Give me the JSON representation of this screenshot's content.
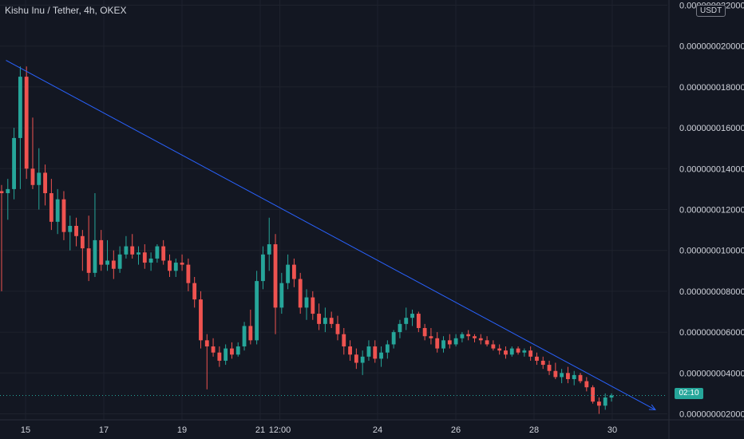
{
  "header": {
    "symbol_title": "Kishu Inu / Tether, 4h, OKEX",
    "currency_unit": "USDT",
    "countdown": "02:10"
  },
  "colors": {
    "background": "#131722",
    "grid": "#1e222d",
    "text": "#d1d4dc",
    "up": "#26a69a",
    "down": "#ef5350",
    "trendline": "#2962ff",
    "axis_border": "#2a2e39"
  },
  "chart_data": {
    "type": "candlestick",
    "title": "Kishu Inu / Tether, 4h, OKEX",
    "xlabel": "",
    "ylabel": "",
    "ylim": [
      1e-09,
      2.21e-08
    ],
    "y_ticks": [
      "0.000000002000",
      "0.000000004000",
      "0.000000006000",
      "0.000000008000",
      "0.000000010000",
      "0.000000012000",
      "0.000000014000",
      "0.000000016000",
      "0.000000018000",
      "0.000000020000",
      "0.000000022000"
    ],
    "x_ticks": [
      {
        "label": "15",
        "day": 15
      },
      {
        "label": "17",
        "day": 17
      },
      {
        "label": "19",
        "day": 19
      },
      {
        "label": "21",
        "day": 21
      },
      {
        "label": "12:00",
        "day": 21.5
      },
      {
        "label": "24",
        "day": 24
      },
      {
        "label": "26",
        "day": 26
      },
      {
        "label": "28",
        "day": 28
      },
      {
        "label": "30",
        "day": 30
      }
    ],
    "grid": true,
    "candles": [
      [
        12.9,
        13.2,
        8.0,
        12.8
      ],
      [
        12.8,
        13.5,
        11.5,
        13.0
      ],
      [
        13.0,
        16.0,
        12.5,
        15.5
      ],
      [
        15.5,
        19.0,
        13.0,
        18.5
      ],
      [
        18.5,
        19.0,
        13.5,
        14.0
      ],
      [
        14.0,
        16.5,
        13.0,
        13.2
      ],
      [
        13.2,
        15.0,
        12.0,
        13.8
      ],
      [
        13.8,
        14.2,
        12.2,
        12.8
      ],
      [
        12.8,
        13.5,
        11.0,
        11.4
      ],
      [
        11.4,
        13.0,
        10.8,
        12.5
      ],
      [
        12.5,
        12.9,
        10.5,
        10.9
      ],
      [
        10.9,
        11.7,
        10.0,
        11.2
      ],
      [
        11.2,
        11.6,
        10.2,
        10.7
      ],
      [
        10.7,
        11.0,
        9.0,
        10.1
      ],
      [
        10.1,
        11.7,
        8.5,
        8.9
      ],
      [
        8.9,
        12.8,
        8.7,
        10.5
      ],
      [
        10.5,
        11.0,
        9.0,
        9.3
      ],
      [
        9.3,
        10.5,
        9.0,
        9.5
      ],
      [
        9.5,
        10.0,
        8.6,
        9.1
      ],
      [
        9.1,
        10.2,
        8.9,
        9.8
      ],
      [
        9.8,
        10.7,
        9.6,
        10.2
      ],
      [
        10.2,
        10.8,
        9.6,
        9.8
      ],
      [
        9.8,
        10.2,
        9.3,
        9.9
      ],
      [
        9.9,
        10.3,
        9.1,
        9.4
      ],
      [
        9.4,
        9.9,
        9.0,
        9.6
      ],
      [
        9.6,
        10.3,
        9.4,
        10.2
      ],
      [
        10.2,
        10.5,
        9.3,
        9.5
      ],
      [
        9.5,
        9.8,
        8.7,
        9.0
      ],
      [
        9.0,
        9.6,
        8.7,
        9.4
      ],
      [
        9.4,
        9.8,
        9.0,
        9.3
      ],
      [
        9.3,
        9.6,
        8.0,
        8.4
      ],
      [
        8.4,
        8.7,
        7.2,
        7.6
      ],
      [
        7.6,
        8.0,
        5.2,
        5.6
      ],
      [
        5.6,
        5.9,
        3.2,
        5.3
      ],
      [
        5.3,
        5.7,
        4.8,
        5.0
      ],
      [
        5.0,
        5.3,
        4.3,
        4.6
      ],
      [
        4.6,
        5.4,
        4.4,
        5.2
      ],
      [
        5.2,
        5.5,
        4.7,
        4.9
      ],
      [
        4.9,
        5.5,
        4.8,
        5.3
      ],
      [
        5.3,
        6.5,
        5.1,
        6.3
      ],
      [
        6.3,
        7.1,
        5.4,
        5.6
      ],
      [
        5.6,
        9.0,
        5.4,
        8.5
      ],
      [
        8.5,
        10.2,
        8.1,
        9.8
      ],
      [
        9.8,
        11.6,
        9.0,
        10.3
      ],
      [
        10.3,
        10.8,
        5.9,
        7.2
      ],
      [
        7.2,
        8.9,
        6.9,
        8.4
      ],
      [
        8.4,
        9.8,
        8.1,
        9.3
      ],
      [
        9.3,
        9.6,
        8.2,
        8.6
      ],
      [
        8.6,
        8.9,
        6.9,
        7.2
      ],
      [
        7.2,
        8.1,
        6.6,
        7.7
      ],
      [
        7.7,
        8.0,
        6.6,
        6.9
      ],
      [
        6.9,
        7.4,
        6.1,
        6.4
      ],
      [
        6.4,
        7.2,
        6.0,
        6.7
      ],
      [
        6.7,
        7.0,
        6.2,
        6.4
      ],
      [
        6.4,
        6.8,
        5.6,
        5.9
      ],
      [
        5.9,
        6.2,
        4.9,
        5.3
      ],
      [
        5.3,
        5.6,
        4.6,
        4.9
      ],
      [
        4.9,
        5.2,
        4.2,
        4.5
      ],
      [
        4.5,
        5.1,
        3.9,
        4.8
      ],
      [
        4.8,
        5.6,
        4.6,
        5.3
      ],
      [
        5.3,
        5.6,
        4.5,
        4.7
      ],
      [
        4.7,
        5.3,
        4.3,
        5.0
      ],
      [
        5.0,
        5.6,
        4.7,
        5.4
      ],
      [
        5.4,
        6.1,
        5.2,
        6.0
      ],
      [
        6.0,
        6.6,
        5.7,
        6.4
      ],
      [
        6.4,
        7.2,
        6.1,
        6.7
      ],
      [
        6.7,
        7.1,
        6.3,
        6.9
      ],
      [
        6.9,
        7.0,
        6.0,
        6.2
      ],
      [
        6.2,
        6.4,
        5.6,
        5.8
      ],
      [
        5.8,
        6.2,
        5.4,
        5.7
      ],
      [
        5.7,
        6.0,
        5.0,
        5.2
      ],
      [
        5.2,
        5.8,
        5.0,
        5.6
      ],
      [
        5.6,
        5.9,
        5.2,
        5.4
      ],
      [
        5.4,
        5.9,
        5.3,
        5.7
      ],
      [
        5.7,
        6.0,
        5.5,
        5.9
      ],
      [
        5.9,
        6.1,
        5.6,
        5.8
      ],
      [
        5.8,
        5.9,
        5.5,
        5.7
      ],
      [
        5.7,
        5.9,
        5.4,
        5.6
      ],
      [
        5.6,
        5.8,
        5.3,
        5.4
      ],
      [
        5.4,
        5.6,
        5.1,
        5.2
      ],
      [
        5.2,
        5.4,
        4.9,
        5.1
      ],
      [
        5.1,
        5.3,
        4.7,
        4.9
      ],
      [
        4.9,
        5.3,
        4.8,
        5.2
      ],
      [
        5.2,
        5.3,
        4.9,
        5.0
      ],
      [
        5.0,
        5.2,
        4.8,
        5.1
      ],
      [
        5.1,
        5.3,
        4.6,
        4.8
      ],
      [
        4.8,
        5.0,
        4.4,
        4.6
      ],
      [
        4.6,
        4.8,
        4.2,
        4.4
      ],
      [
        4.4,
        4.6,
        3.9,
        4.1
      ],
      [
        4.1,
        4.5,
        3.7,
        3.8
      ],
      [
        3.8,
        4.2,
        3.5,
        4.0
      ],
      [
        4.0,
        4.3,
        3.5,
        3.7
      ],
      [
        3.7,
        4.1,
        3.4,
        3.9
      ],
      [
        3.9,
        4.0,
        3.5,
        3.6
      ],
      [
        3.6,
        3.8,
        3.1,
        3.3
      ],
      [
        3.3,
        3.4,
        2.5,
        2.6
      ],
      [
        2.6,
        2.8,
        2.0,
        2.4
      ],
      [
        2.4,
        3.0,
        2.2,
        2.8
      ],
      [
        2.8,
        3.0,
        2.6,
        2.9
      ]
    ],
    "trendline": {
      "from": {
        "day": 14.5,
        "price": 1.93e-08
      },
      "to": {
        "day": 31.1,
        "price": 2.2e-09
      }
    },
    "last_price": 2.9e-09
  }
}
